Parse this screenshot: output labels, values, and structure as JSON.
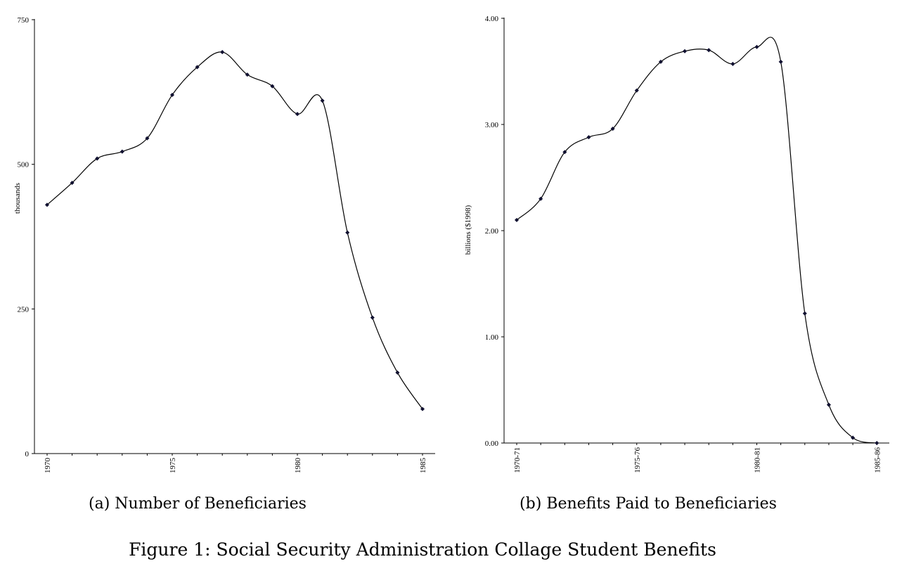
{
  "figure": {
    "caption": "Figure 1: Social Security Administration Collage Student Benefits"
  },
  "chart_data": [
    {
      "type": "line",
      "caption": "(a) Number of Beneficiaries",
      "ylabel": "thousands",
      "xlabel": "",
      "x": [
        1970,
        1971,
        1972,
        1973,
        1974,
        1975,
        1976,
        1977,
        1978,
        1979,
        1980,
        1981,
        1982,
        1983,
        1984,
        1985
      ],
      "values": [
        430,
        468,
        510,
        522,
        545,
        620,
        668,
        694,
        655,
        635,
        587,
        610,
        382,
        235,
        140,
        77
      ],
      "ylim": [
        0,
        750
      ],
      "yticks": [
        "0",
        "250",
        "500",
        "750"
      ],
      "xticklabels": [
        "1970",
        "1975",
        "1980",
        "1985"
      ],
      "xtick_positions": [
        1970,
        1975,
        1980,
        1985
      ],
      "grid": false
    },
    {
      "type": "line",
      "caption": "(b) Benefits Paid to Beneficiaries",
      "ylabel": "billions ($1998)",
      "xlabel": "",
      "x": [
        "1970-71",
        "1971-72",
        "1972-73",
        "1973-74",
        "1974-75",
        "1975-76",
        "1976-77",
        "1977-78",
        "1978-79",
        "1979-80",
        "1980-81",
        "1981-82",
        "1982-83",
        "1983-84",
        "1984-85",
        "1985-86"
      ],
      "values": [
        2.1,
        2.3,
        2.74,
        2.88,
        2.96,
        3.32,
        3.59,
        3.69,
        3.7,
        3.57,
        3.73,
        3.59,
        1.22,
        0.36,
        0.05,
        0.0
      ],
      "ylim": [
        0,
        4
      ],
      "yticks": [
        "0.00",
        "1.00",
        "2.00",
        "3.00",
        "4.00"
      ],
      "xticklabels": [
        "1970-71",
        "1975-76",
        "1980-81",
        "1985-86"
      ],
      "xtick_positions": [
        0,
        5,
        10,
        15
      ],
      "grid": false
    }
  ]
}
